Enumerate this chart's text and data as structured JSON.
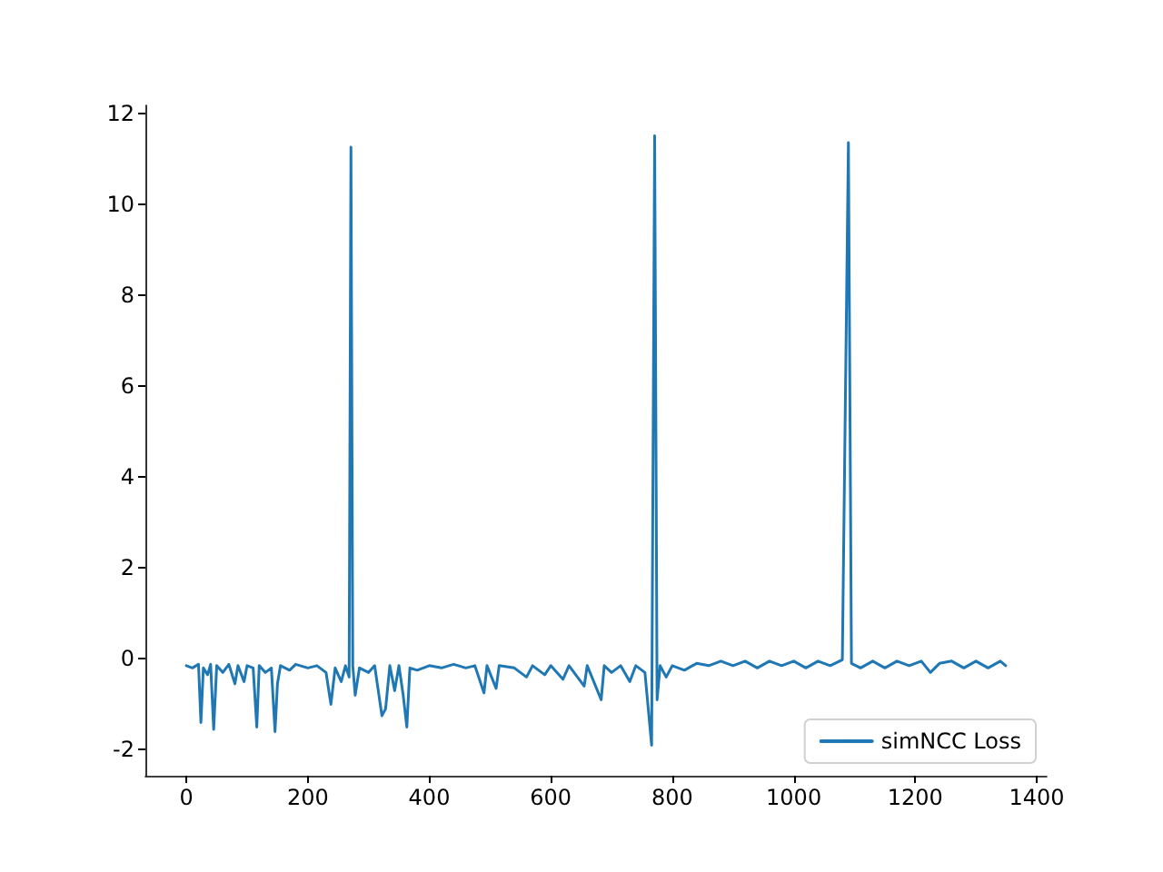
{
  "chart_data": {
    "type": "line",
    "xlim": [
      -67.45,
      1416.45
    ],
    "ylim": [
      -2.57,
      12.17
    ],
    "xticks": [
      0,
      200,
      400,
      600,
      800,
      1000,
      1200,
      1400
    ],
    "yticks": [
      -2,
      0,
      2,
      4,
      6,
      8,
      10,
      12
    ],
    "grid": false,
    "legend": "bottom right",
    "marker": "none",
    "line_style": "solid",
    "x": [
      0,
      10,
      20,
      24,
      28,
      35,
      40,
      45,
      50,
      60,
      70,
      80,
      85,
      95,
      100,
      110,
      116,
      120,
      130,
      140,
      146,
      150,
      155,
      170,
      180,
      200,
      215,
      230,
      238,
      245,
      255,
      262,
      268,
      271,
      274,
      278,
      285,
      300,
      310,
      322,
      328,
      335,
      343,
      350,
      357,
      363,
      368,
      380,
      400,
      420,
      440,
      460,
      475,
      490,
      495,
      510,
      515,
      540,
      560,
      570,
      590,
      600,
      620,
      630,
      655,
      660,
      683,
      688,
      700,
      715,
      730,
      740,
      755,
      766,
      771,
      775,
      780,
      790,
      800,
      820,
      840,
      860,
      880,
      900,
      920,
      940,
      960,
      980,
      1000,
      1020,
      1040,
      1060,
      1080,
      1090,
      1095,
      1110,
      1130,
      1150,
      1170,
      1190,
      1210,
      1225,
      1240,
      1260,
      1280,
      1300,
      1320,
      1340,
      1349
    ],
    "series": [
      {
        "name": "simNCC Loss",
        "color": "#1f77b4",
        "values": [
          -0.15,
          -0.2,
          -0.12,
          -1.4,
          -0.2,
          -0.35,
          -0.12,
          -1.55,
          -0.15,
          -0.3,
          -0.12,
          -0.55,
          -0.15,
          -0.5,
          -0.15,
          -0.2,
          -1.5,
          -0.15,
          -0.3,
          -0.2,
          -1.6,
          -0.55,
          -0.15,
          -0.25,
          -0.12,
          -0.2,
          -0.15,
          -0.3,
          -1.0,
          -0.2,
          -0.5,
          -0.15,
          -0.4,
          11.25,
          -0.15,
          -0.8,
          -0.2,
          -0.3,
          -0.15,
          -1.25,
          -1.1,
          -0.15,
          -0.7,
          -0.15,
          -0.8,
          -1.5,
          -0.2,
          -0.25,
          -0.15,
          -0.2,
          -0.12,
          -0.2,
          -0.15,
          -0.75,
          -0.15,
          -0.65,
          -0.15,
          -0.2,
          -0.4,
          -0.15,
          -0.35,
          -0.15,
          -0.45,
          -0.15,
          -0.6,
          -0.15,
          -0.9,
          -0.15,
          -0.3,
          -0.15,
          -0.5,
          -0.15,
          -0.3,
          -1.9,
          11.5,
          -0.9,
          -0.15,
          -0.4,
          -0.15,
          -0.25,
          -0.1,
          -0.15,
          -0.05,
          -0.15,
          -0.05,
          -0.2,
          -0.05,
          -0.15,
          -0.05,
          -0.2,
          -0.05,
          -0.15,
          -0.02,
          11.35,
          -0.1,
          -0.2,
          -0.05,
          -0.2,
          -0.05,
          -0.15,
          -0.05,
          -0.3,
          -0.1,
          -0.05,
          -0.2,
          -0.05,
          -0.2,
          -0.05,
          -0.15
        ]
      }
    ]
  }
}
